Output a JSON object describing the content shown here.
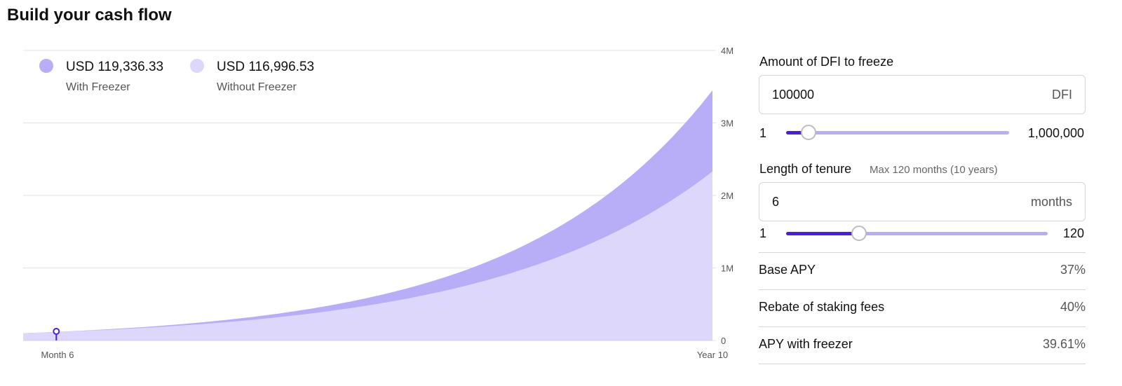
{
  "title": "Build your cash flow",
  "colors": {
    "with_freezer": "#b8aef7",
    "without_freezer": "#ddd8fb",
    "accent": "#4a1ee0",
    "grid": "#e2e2e2"
  },
  "legend": [
    {
      "value": "USD 119,336.33",
      "label": "With Freezer"
    },
    {
      "value": "USD 116,996.53",
      "label": "Without Freezer"
    }
  ],
  "chart_data": {
    "type": "area",
    "x_labels": [
      "Month 6",
      "Year 10"
    ],
    "y_ticks": [
      "0",
      "1M",
      "2M",
      "3M",
      "4M"
    ],
    "ylim": [
      0,
      4000000
    ],
    "x_range_months": [
      1,
      120
    ],
    "marker_month": 6,
    "series": [
      {
        "name": "With Freezer",
        "start_value": 100000,
        "end_value": 3450000
      },
      {
        "name": "Without Freezer",
        "start_value": 100000,
        "end_value": 2330000
      }
    ],
    "grid": true,
    "legend_position": "top-left"
  },
  "amount": {
    "label": "Amount of DFI to freeze",
    "value": "100000",
    "unit": "DFI",
    "min_label": "1",
    "max_label": "1,000,000",
    "slider_level": 0.1
  },
  "tenure": {
    "label": "Length of tenure",
    "hint": "Max 120 months (10 years)",
    "value": "6",
    "unit": "months",
    "min_label": "1",
    "max_label": "120",
    "slider_level": 0.28
  },
  "stats": [
    {
      "name": "Base APY",
      "value": "37%"
    },
    {
      "name": "Rebate of staking fees",
      "value": "40%"
    },
    {
      "name": "APY with freezer",
      "value": "39.61%"
    }
  ]
}
